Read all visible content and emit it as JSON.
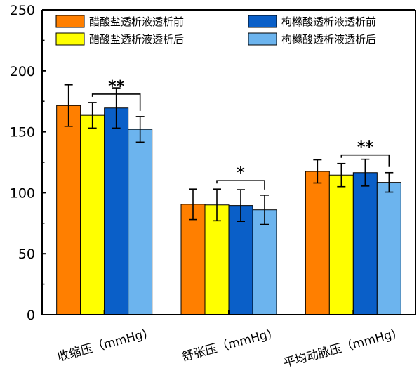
{
  "chart_data": {
    "type": "bar",
    "categories": [
      "收缩压（mmHg)",
      "舒张压（mmHg)",
      "平均动脉压（mmHg)"
    ],
    "series": [
      {
        "name": "醋酸盐透析液透析前",
        "values": [
          171.5,
          90.5,
          117.5
        ],
        "errors": [
          17,
          12.5,
          9.5
        ],
        "color": "#FF7F00"
      },
      {
        "name": "醋酸盐透析液透析后",
        "values": [
          163.5,
          90,
          114.5
        ],
        "errors": [
          10.5,
          13,
          9.5
        ],
        "color": "#FFFF00"
      },
      {
        "name": "枸橼酸透析液透析前",
        "values": [
          169.5,
          89.5,
          116.5
        ],
        "errors": [
          16.5,
          13,
          11
        ],
        "color": "#0A5FC8"
      },
      {
        "name": "枸橼酸透析液透析后",
        "values": [
          152,
          86,
          108.5
        ],
        "errors": [
          10.5,
          12,
          8
        ],
        "color": "#6CB4EE"
      }
    ],
    "ylim": [
      0,
      250
    ],
    "yticks": [
      0,
      50,
      100,
      150,
      200,
      250
    ],
    "significance": [
      {
        "category_index": 0,
        "from_series": 1,
        "to_series": 3,
        "label": "**"
      },
      {
        "category_index": 1,
        "from_series": 1,
        "to_series": 3,
        "label": "*"
      },
      {
        "category_index": 2,
        "from_series": 1,
        "to_series": 3,
        "label": "**"
      }
    ],
    "legend_position": "top",
    "grid": false
  }
}
